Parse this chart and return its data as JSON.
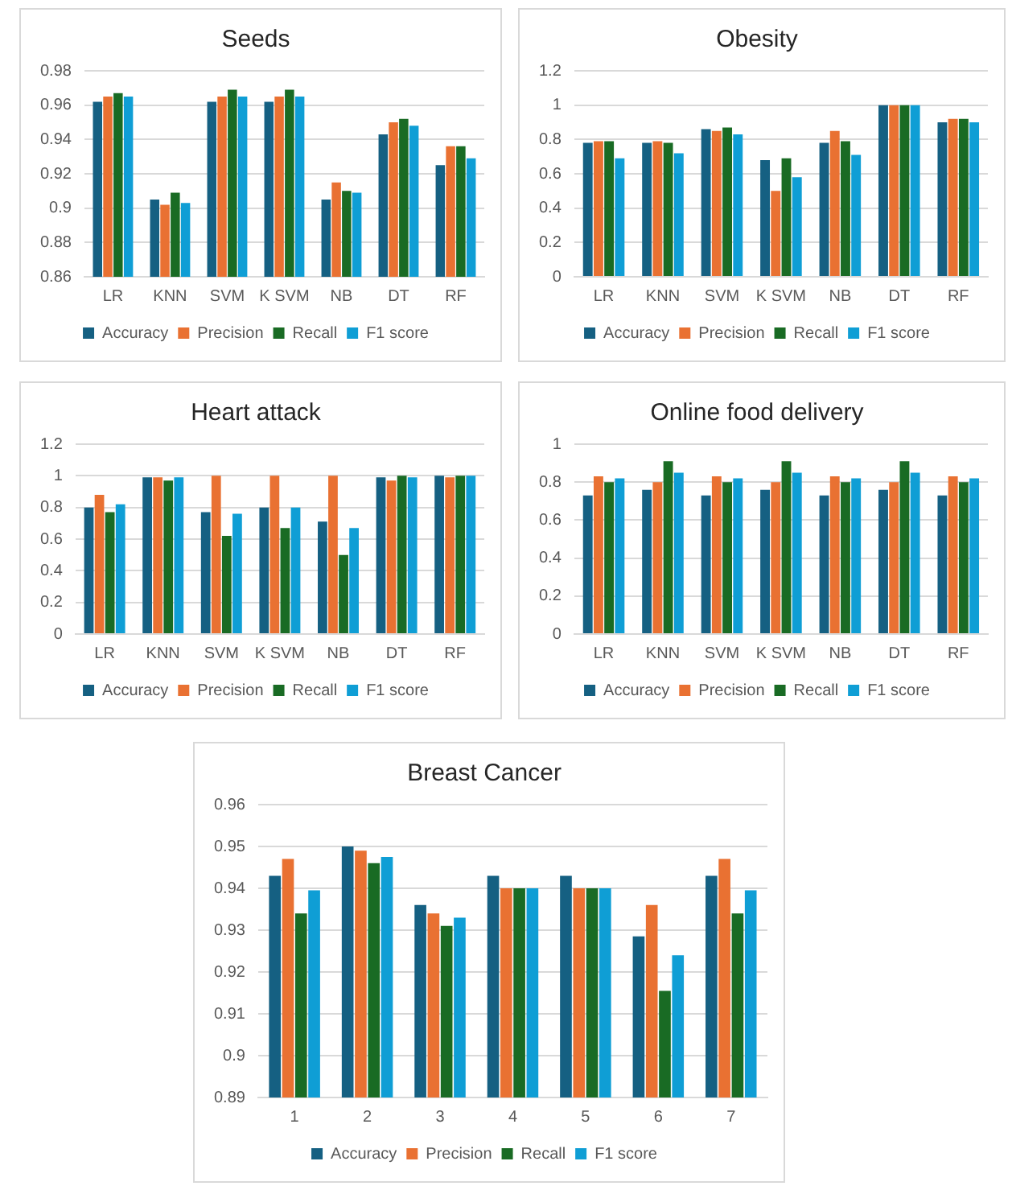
{
  "chart_data": [
    {
      "type": "bar",
      "title": "Seeds",
      "categories": [
        "LR",
        "KNN",
        "SVM",
        "K SVM",
        "NB",
        "DT",
        "RF"
      ],
      "ylim": [
        0.86,
        0.98
      ],
      "yticks": [
        0.86,
        0.88,
        0.9,
        0.92,
        0.94,
        0.96,
        0.98
      ],
      "grid": "y",
      "legend": "bottom",
      "series": [
        {
          "name": "Accuracy",
          "color": "#156082",
          "values": [
            0.962,
            0.905,
            0.962,
            0.962,
            0.905,
            0.943,
            0.925
          ]
        },
        {
          "name": "Precision",
          "color": "#e97132",
          "values": [
            0.965,
            0.902,
            0.965,
            0.965,
            0.915,
            0.95,
            0.936
          ]
        },
        {
          "name": "Recall",
          "color": "#196b24",
          "values": [
            0.967,
            0.909,
            0.969,
            0.969,
            0.91,
            0.952,
            0.936
          ]
        },
        {
          "name": "F1 score",
          "color": "#0f9ed5",
          "values": [
            0.965,
            0.903,
            0.965,
            0.965,
            0.909,
            0.948,
            0.929
          ]
        }
      ]
    },
    {
      "type": "bar",
      "title": "Obesity",
      "categories": [
        "LR",
        "KNN",
        "SVM",
        "K SVM",
        "NB",
        "DT",
        "RF"
      ],
      "ylim": [
        0,
        1.2
      ],
      "yticks": [
        0,
        0.2,
        0.4,
        0.6,
        0.8,
        1,
        1.2
      ],
      "grid": "y",
      "legend": "bottom",
      "series": [
        {
          "name": "Accuracy",
          "color": "#156082",
          "values": [
            0.78,
            0.78,
            0.86,
            0.68,
            0.78,
            1,
            0.9
          ]
        },
        {
          "name": "Precision",
          "color": "#e97132",
          "values": [
            0.79,
            0.79,
            0.85,
            0.5,
            0.85,
            1,
            0.92
          ]
        },
        {
          "name": "Recall",
          "color": "#196b24",
          "values": [
            0.79,
            0.78,
            0.87,
            0.69,
            0.79,
            1,
            0.92
          ]
        },
        {
          "name": "F1 score",
          "color": "#0f9ed5",
          "values": [
            0.69,
            0.72,
            0.83,
            0.58,
            0.71,
            1,
            0.9
          ]
        }
      ]
    },
    {
      "type": "bar",
      "title": "Heart attack",
      "categories": [
        "LR",
        "KNN",
        "SVM",
        "K SVM",
        "NB",
        "DT",
        "RF"
      ],
      "ylim": [
        0,
        1.2
      ],
      "yticks": [
        0,
        0.2,
        0.4,
        0.6,
        0.8,
        1,
        1.2
      ],
      "grid": "y",
      "legend": "bottom",
      "series": [
        {
          "name": "Accuracy",
          "color": "#156082",
          "values": [
            0.8,
            0.99,
            0.77,
            0.8,
            0.71,
            0.99,
            1.0
          ]
        },
        {
          "name": "Precision",
          "color": "#e97132",
          "values": [
            0.88,
            0.99,
            1.0,
            1.0,
            1.0,
            0.97,
            0.99
          ]
        },
        {
          "name": "Recall",
          "color": "#196b24",
          "values": [
            0.77,
            0.97,
            0.62,
            0.67,
            0.5,
            1.0,
            1.0
          ]
        },
        {
          "name": "F1 score",
          "color": "#0f9ed5",
          "values": [
            0.82,
            0.99,
            0.76,
            0.8,
            0.67,
            0.99,
            1.0
          ]
        }
      ]
    },
    {
      "type": "bar",
      "title": "Online food delivery",
      "categories": [
        "LR",
        "KNN",
        "SVM",
        "K SVM",
        "NB",
        "DT",
        "RF"
      ],
      "ylim": [
        0,
        1
      ],
      "yticks": [
        0,
        0.2,
        0.4,
        0.6,
        0.8,
        1
      ],
      "grid": "y",
      "legend": "bottom",
      "series": [
        {
          "name": "Accuracy",
          "color": "#156082",
          "values": [
            0.73,
            0.76,
            0.73,
            0.76,
            0.73,
            0.76,
            0.73
          ]
        },
        {
          "name": "Precision",
          "color": "#e97132",
          "values": [
            0.83,
            0.8,
            0.83,
            0.8,
            0.83,
            0.8,
            0.83
          ]
        },
        {
          "name": "Recall",
          "color": "#196b24",
          "values": [
            0.8,
            0.91,
            0.8,
            0.91,
            0.8,
            0.91,
            0.8
          ]
        },
        {
          "name": "F1 score",
          "color": "#0f9ed5",
          "values": [
            0.82,
            0.85,
            0.82,
            0.85,
            0.82,
            0.85,
            0.82
          ]
        }
      ]
    },
    {
      "type": "bar",
      "title": "Breast Cancer",
      "categories": [
        "1",
        "2",
        "3",
        "4",
        "5",
        "6",
        "7"
      ],
      "ylim": [
        0.89,
        0.96
      ],
      "yticks": [
        0.89,
        0.9,
        0.91,
        0.92,
        0.93,
        0.94,
        0.95,
        0.96
      ],
      "grid": "y",
      "legend": "bottom",
      "series": [
        {
          "name": "Accuracy",
          "color": "#156082",
          "values": [
            0.943,
            0.95,
            0.936,
            0.943,
            0.943,
            0.9285,
            0.943
          ]
        },
        {
          "name": "Precision",
          "color": "#e97132",
          "values": [
            0.947,
            0.949,
            0.934,
            0.94,
            0.94,
            0.936,
            0.947
          ]
        },
        {
          "name": "Recall",
          "color": "#196b24",
          "values": [
            0.934,
            0.946,
            0.931,
            0.94,
            0.94,
            0.9155,
            0.934
          ]
        },
        {
          "name": "F1 score",
          "color": "#0f9ed5",
          "values": [
            0.9395,
            0.9475,
            0.933,
            0.94,
            0.94,
            0.924,
            0.9395
          ]
        }
      ]
    }
  ]
}
